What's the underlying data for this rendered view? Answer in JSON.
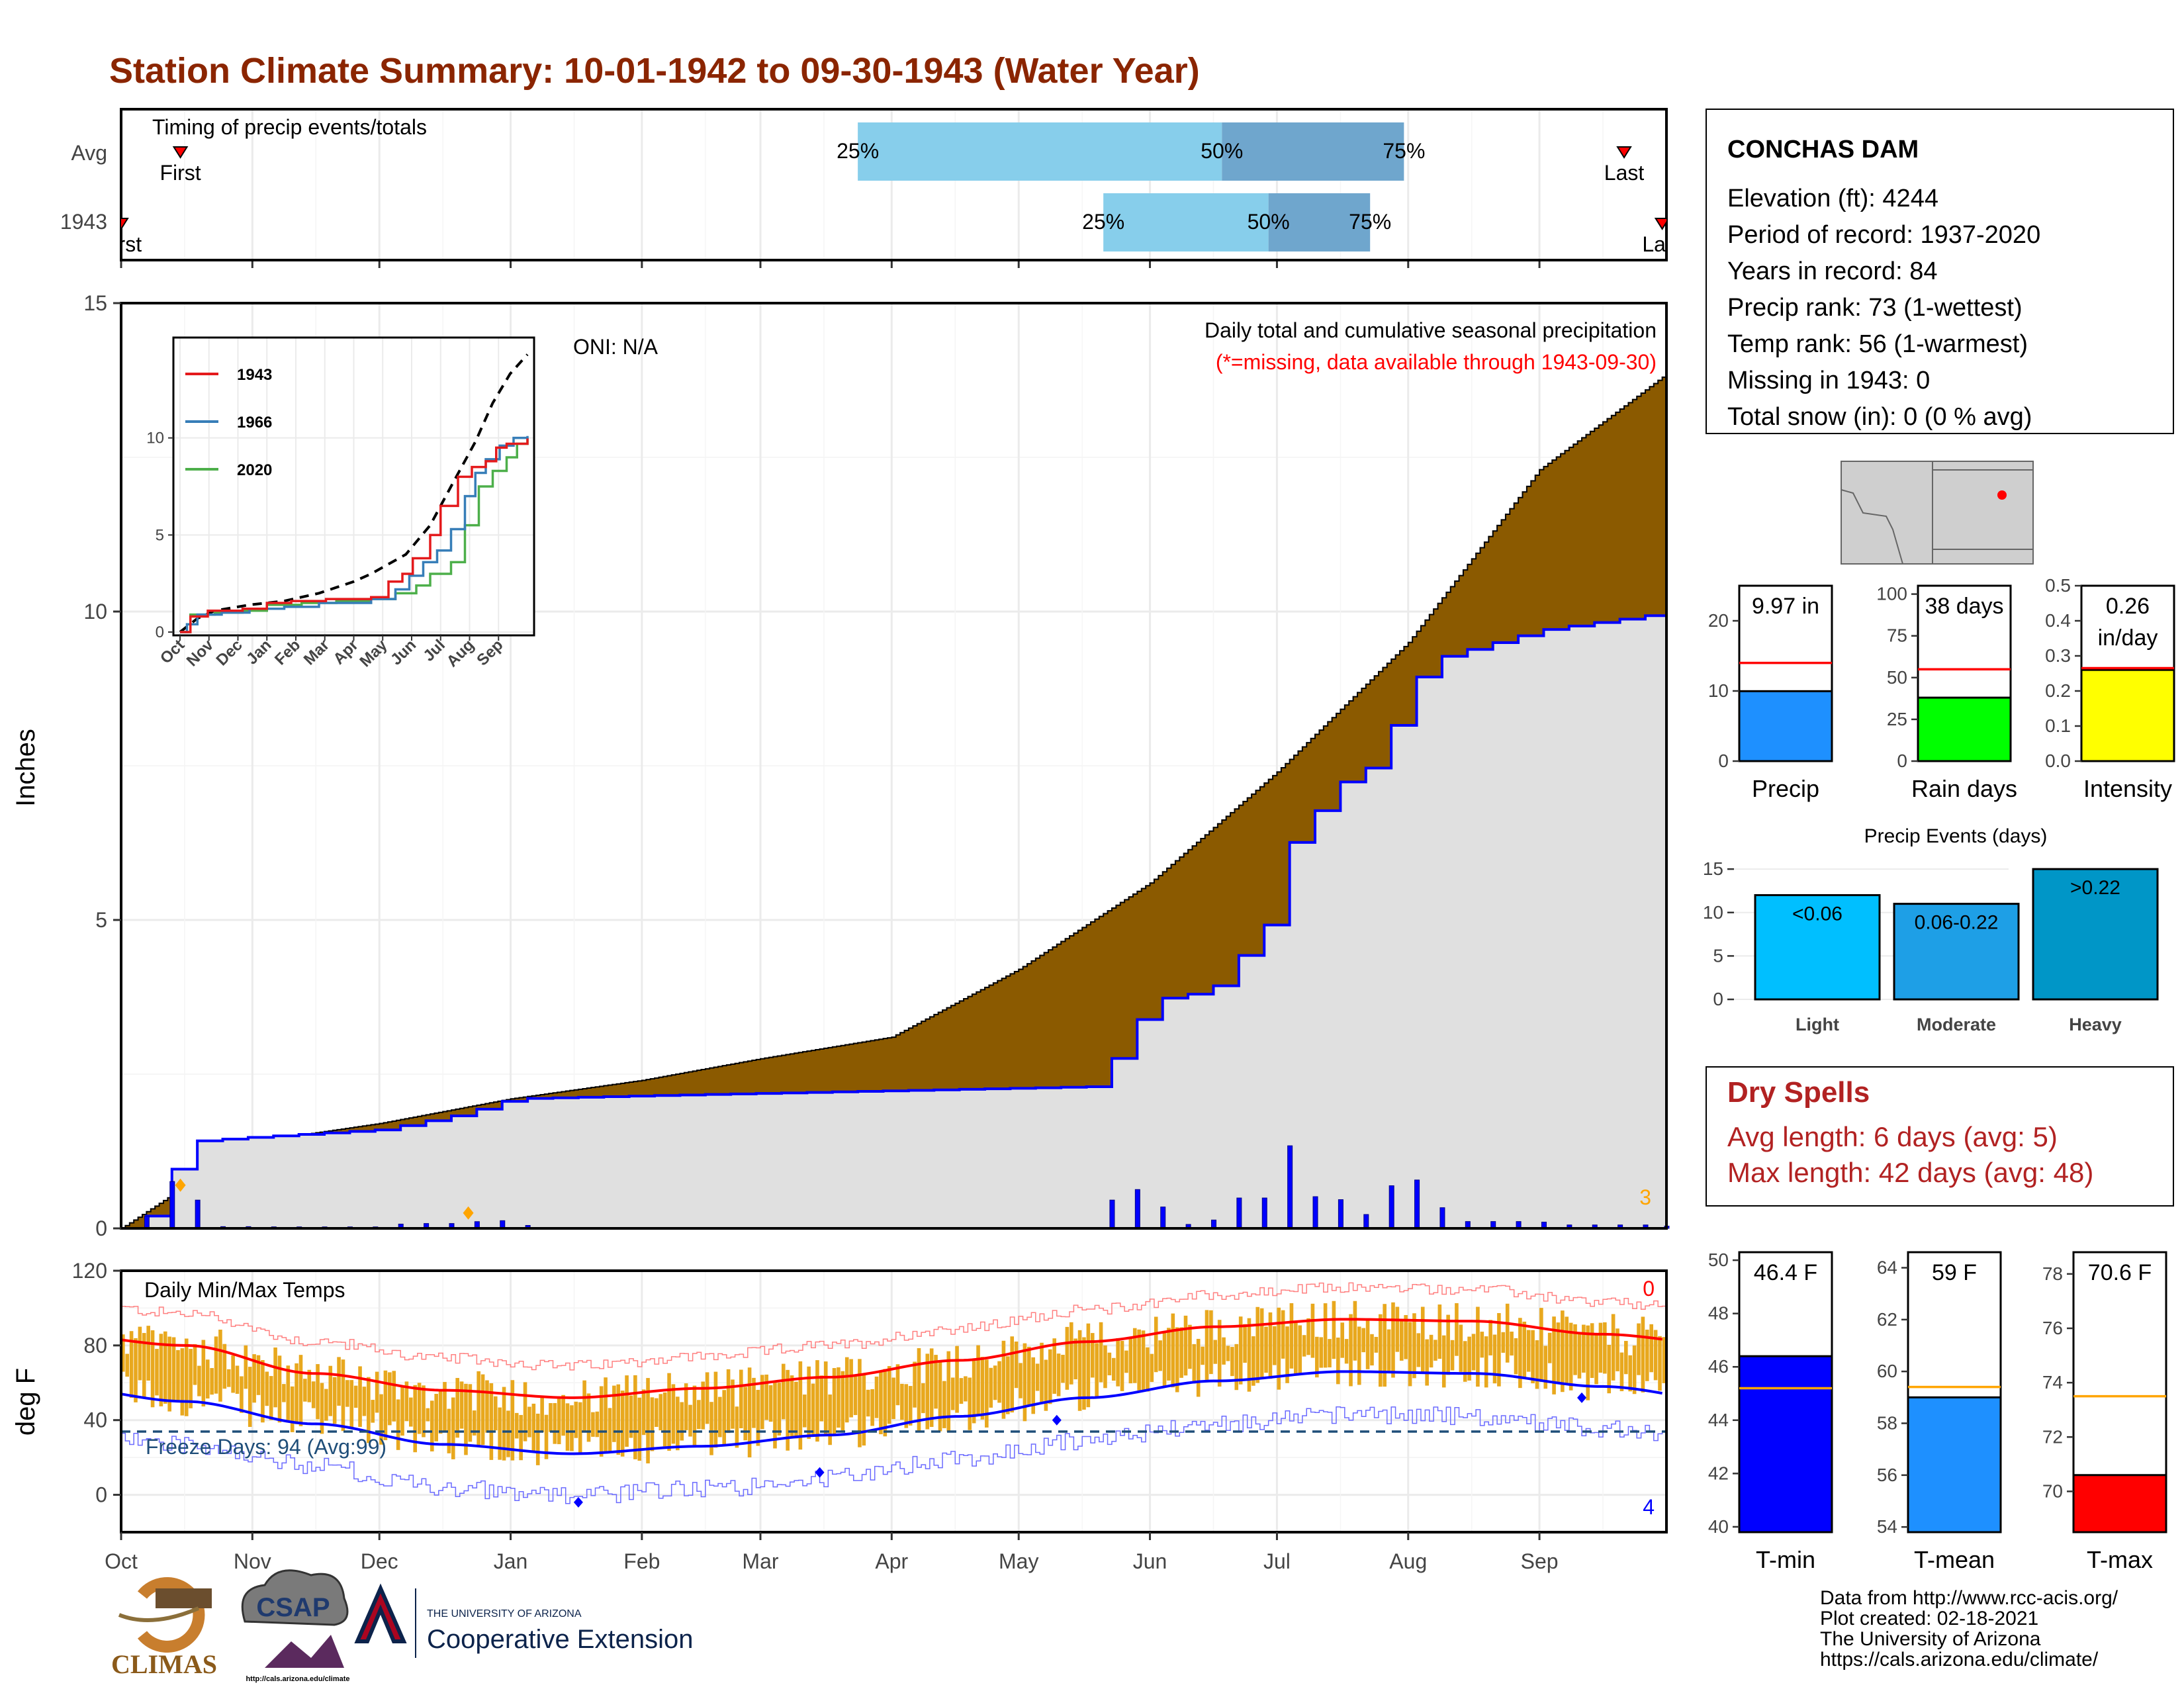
{
  "title": "Station Climate Summary: 10-01-1942 to 09-30-1943 (Water Year)",
  "colors": {
    "title": "#8B2500",
    "cum_1943": "#8B5A00",
    "cum_avg_fill": "#e0e0e0",
    "cum_avg_line": "#0000ff",
    "green_fill": "#228B22",
    "temp_bar": "#E8A81E",
    "tmax_line": "#ff0000",
    "tmin_line": "#0000ff",
    "q_light": "#87CEEB",
    "q_dark": "#6FA6CD",
    "dry_spells": "#B22222"
  },
  "timing": {
    "label": "Timing of precip events/totals",
    "rows": [
      {
        "label": "Avg",
        "first": "First",
        "last": "Last",
        "p25": "25%",
        "p50": "50%",
        "p75": "75%",
        "first_date": "1942-10-15",
        "last_date": "1943-09-21",
        "q25_date": "1943-03-24",
        "q50_date": "1943-06-18",
        "q75_date": "1943-07-31"
      },
      {
        "label": "1943",
        "first": "First",
        "last": "Last",
        "p25": "25%",
        "p50": "50%",
        "p75": "75%",
        "first_date": "1942-10-01",
        "last_date": "1943-09-30",
        "q25_date": "1943-05-21",
        "q50_date": "1943-06-29",
        "q75_date": "1943-07-23"
      }
    ]
  },
  "station": {
    "name": "CONCHAS DAM",
    "lines": [
      "Elevation (ft): 4244",
      "Period of record: 1937-2020",
      "Years in record: 84",
      "Precip rank: 73 (1-wettest)",
      "Temp rank: 56 (1-warmest)",
      "Missing in 1943: 0",
      "Total snow (in): 0 (0 % avg)"
    ]
  },
  "precip_panel": {
    "ylabel": "Inches",
    "header": "Daily total and cumulative seasonal precipitation",
    "subheader": "(*=missing, data available through 1943-09-30)",
    "oni": "ONI: N/A",
    "corner_count": "3",
    "yticks": [
      "0",
      "5",
      "10",
      "15"
    ]
  },
  "inset": {
    "yticks": [
      "0",
      "5",
      "10"
    ],
    "xticks": [
      "Oct",
      "Nov",
      "Dec",
      "Jan",
      "Feb",
      "Mar",
      "Apr",
      "May",
      "Jun",
      "Jul",
      "Aug",
      "Sep"
    ],
    "legend": [
      "1943",
      "1966",
      "2020"
    ],
    "legend_colors": [
      "#e41a1c",
      "#377eb8",
      "#4daf4a"
    ]
  },
  "temp_panel": {
    "ylabel": "deg F",
    "label": "Daily Min/Max Temps",
    "freeze": "Freeze Days: 94 (Avg:99)",
    "count_top": "0",
    "count_bottom": "4",
    "yticks": [
      "0",
      "40",
      "80",
      "120"
    ]
  },
  "months": [
    "Oct",
    "Nov",
    "Dec",
    "Jan",
    "Feb",
    "Mar",
    "Apr",
    "May",
    "Jun",
    "Jul",
    "Aug",
    "Sep"
  ],
  "minibars": {
    "precip": {
      "label": "Precip",
      "value_label": "9.97 in",
      "value": 9.97,
      "avg": 14,
      "ylim": [
        0,
        25
      ],
      "yticks": [
        "0",
        "10",
        "20"
      ],
      "color": "#1E90FF"
    },
    "raindays": {
      "label": "Rain days",
      "value_label": "38 days",
      "value": 38,
      "avg": 55,
      "ylim": [
        0,
        105
      ],
      "yticks": [
        "0",
        "25",
        "50",
        "75",
        "100"
      ],
      "color": "#00FF00"
    },
    "intensity": {
      "label": "Intensity",
      "value_label_1": "0.26",
      "value_label_2": "in/day",
      "value": 0.26,
      "avg": 0.265,
      "ylim": [
        0,
        0.5
      ],
      "yticks": [
        "0.0",
        "0.1",
        "0.2",
        "0.3",
        "0.4",
        "0.5"
      ],
      "color": "#FFFF00"
    }
  },
  "events": {
    "title": "Precip Events (days)",
    "yticks": [
      "0",
      "5",
      "10",
      "15"
    ],
    "bars": [
      {
        "label": "Light",
        "tag": "<0.06",
        "value": 12,
        "color": "#00BFFF"
      },
      {
        "label": "Moderate",
        "tag": "0.06-0.22",
        "value": 11,
        "color": "#1E9FE6"
      },
      {
        "label": "Heavy",
        "tag": ">0.22",
        "value": 15,
        "color": "#0096C7"
      }
    ]
  },
  "dry_spells": {
    "title": "Dry Spells",
    "avg": "Avg length: 6 days (avg: 5)",
    "max": "Max length: 42 days (avg: 48)"
  },
  "tempbars": {
    "tmin": {
      "label": "T-min",
      "value_label": "46.4 F",
      "value": 46.4,
      "avg": 45.2,
      "ylim": [
        39.8,
        50.3
      ],
      "yticks": [
        "40",
        "42",
        "44",
        "46",
        "48",
        "50"
      ],
      "color": "#0000FF"
    },
    "tmean": {
      "label": "T-mean",
      "value_label": "59 F",
      "value": 59,
      "avg": 59.4,
      "ylim": [
        53.8,
        64.6
      ],
      "yticks": [
        "54",
        "56",
        "58",
        "60",
        "62",
        "64"
      ],
      "color": "#1E90FF"
    },
    "tmax": {
      "label": "T-max",
      "value_label": "70.6 F",
      "value": 70.6,
      "avg": 73.5,
      "ylim": [
        68.5,
        78.8
      ],
      "yticks": [
        "70",
        "72",
        "74",
        "76",
        "78"
      ],
      "color": "#FF0000"
    }
  },
  "footer": {
    "lines": [
      "Data from http://www.rcc-acis.org/",
      "Plot created: 02-18-2021",
      "The University of Arizona",
      "https://cals.arizona.edu/climate/"
    ],
    "ua_top": "THE UNIVERSITY OF ARIZONA",
    "ua_bottom": "Cooperative Extension",
    "climas": "CLIMAS",
    "csap": "CSAP",
    "csap_url": "http://cals.arizona.edu/climate"
  },
  "chart_data": [
    {
      "type": "area",
      "title": "Daily total and cumulative seasonal precipitation",
      "ylabel": "Inches",
      "ylim": [
        0,
        15
      ],
      "series": [
        {
          "name": "1943",
          "x": [
            "1942-10-01",
            "1942-11-01",
            "1942-12-01",
            "1943-01-01",
            "1943-02-01",
            "1943-03-01",
            "1943-04-01",
            "1943-05-01",
            "1943-06-01",
            "1943-07-01",
            "1943-08-01",
            "1943-09-01",
            "1943-09-30"
          ],
          "values": [
            0,
            1.4,
            1.7,
            2.1,
            2.4,
            2.75,
            3.1,
            4.2,
            5.6,
            7.4,
            9.5,
            12.3,
            13.8
          ]
        },
        {
          "x": [
            "1942-10-01",
            "1942-10-10",
            "1942-10-15",
            "1942-11-01",
            "1942-12-01",
            "1942-12-20",
            "1943-01-01",
            "1943-02-01",
            "1943-05-20",
            "1943-05-22",
            "1943-06-01",
            "1943-06-15",
            "1943-06-29",
            "1943-07-01",
            "1943-07-15",
            "1943-07-23",
            "1943-08-05",
            "1943-09-01",
            "1943-09-30"
          ],
          "values": [
            0,
            0.3,
            1.4,
            1.48,
            1.6,
            1.85,
            2.1,
            2.15,
            2.3,
            2.65,
            3.7,
            3.85,
            5.0,
            6.0,
            7.2,
            7.5,
            9.2,
            9.7,
            9.97
          ]
        }
      ]
    },
    {
      "type": "bar",
      "title": "Daily Min/Max Temps",
      "ylabel": "deg F",
      "ylim": [
        -20,
        120
      ],
      "series": [
        {
          "x": [
            "Oct",
            "Nov",
            "Dec",
            "Jan",
            "Feb",
            "Mar",
            "Apr",
            "May",
            "Jun",
            "Jul",
            "Aug",
            "Sep"
          ],
          "values": [
            80,
            65,
            56,
            52,
            57,
            63,
            72,
            82,
            90,
            94,
            93,
            86
          ]
        },
        {
          "x": [
            "Oct",
            "Nov",
            "Dec",
            "Jan",
            "Feb",
            "Mar",
            "Apr",
            "May",
            "Jun",
            "Jul",
            "Aug",
            "Sep"
          ],
          "values": [
            50,
            38,
            27,
            22,
            26,
            32,
            42,
            52,
            61,
            66,
            65,
            58
          ]
        }
      ],
      "freeze_line": 32
    }
  ]
}
